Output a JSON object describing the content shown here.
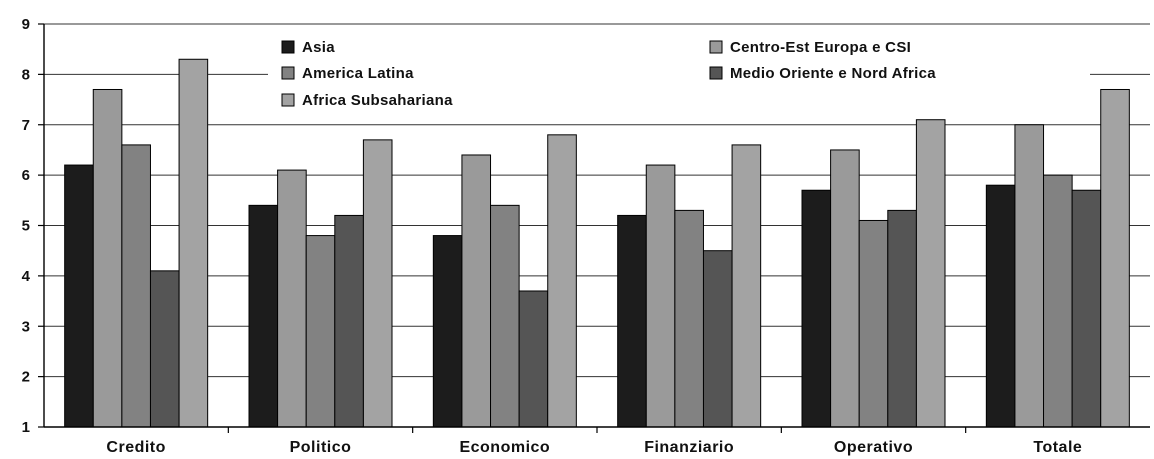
{
  "chart_data": {
    "type": "bar",
    "categories": [
      "Credito",
      "Politico",
      "Economico",
      "Finanziario",
      "Operativo",
      "Totale"
    ],
    "series": [
      {
        "name": "Asia",
        "color": "#1c1c1c",
        "values": [
          6.2,
          5.4,
          4.8,
          5.2,
          5.7,
          5.8
        ]
      },
      {
        "name": "Centro-Est Europa e CSI",
        "color": "#9a9a9a",
        "values": [
          7.7,
          6.1,
          6.4,
          6.2,
          6.5,
          7.0
        ]
      },
      {
        "name": "America Latina",
        "color": "#828282",
        "values": [
          6.6,
          4.8,
          5.4,
          5.3,
          5.1,
          6.0
        ]
      },
      {
        "name": "Medio Oriente e Nord Africa",
        "color": "#555555",
        "values": [
          4.1,
          5.2,
          3.7,
          4.5,
          5.3,
          5.7
        ]
      },
      {
        "name": "Africa Subsahariana",
        "color": "#a3a3a3",
        "values": [
          8.3,
          6.7,
          6.8,
          6.6,
          7.1,
          7.7
        ]
      }
    ],
    "legend_rows": [
      [
        "Asia",
        "Centro-Est Europa e CSI"
      ],
      [
        "America Latina",
        "Medio Oriente e Nord Africa"
      ],
      [
        "Africa Subsahariana"
      ]
    ],
    "ylim": [
      1,
      9
    ],
    "yticks": [
      "1",
      "2",
      "3",
      "4",
      "5",
      "6",
      "7",
      "8",
      "9"
    ],
    "grid": true,
    "legend_position": "top"
  }
}
